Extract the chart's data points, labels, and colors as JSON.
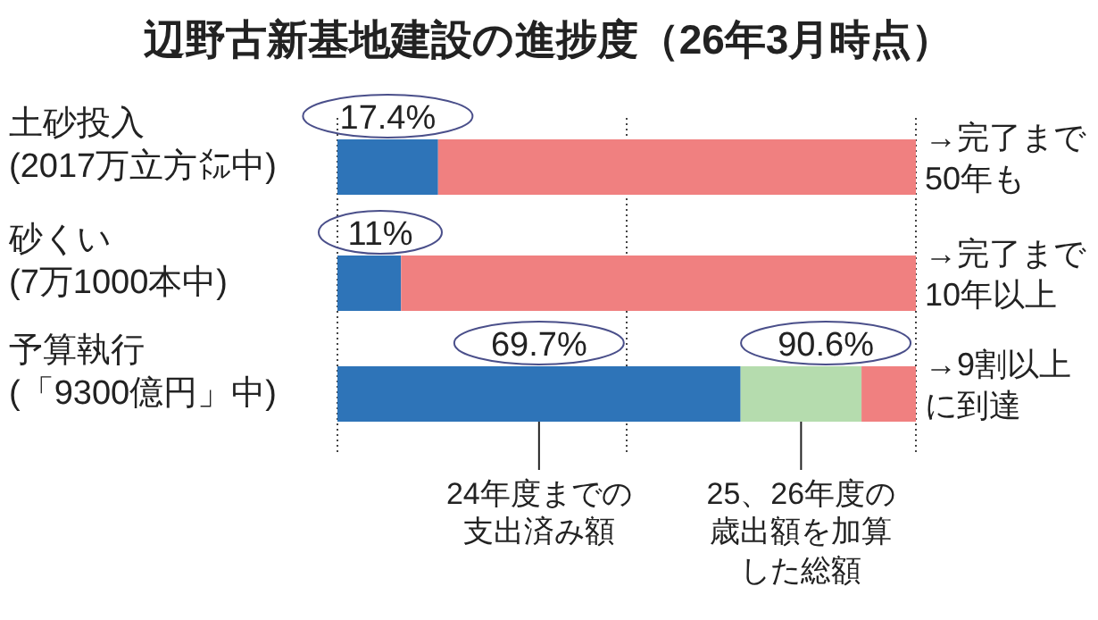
{
  "chart_data": {
    "type": "bar",
    "orientation": "horizontal",
    "stacked": true,
    "title": "辺野古新基地建設の進捗度（26年3月時点）",
    "categories": [
      "土砂投入\n(2017万立方㍍中)",
      "砂くい\n(7万1000本中)",
      "予算執行\n(「9300億円」中)"
    ],
    "series": [
      {
        "name": "24年度までの支出済み額",
        "color": "#2e74b8",
        "values": [
          17.4,
          11,
          69.7
        ],
        "value_labels": [
          "17.4%",
          "11%",
          "69.7%"
        ]
      },
      {
        "name": "25、26年度の歳出額を加算した総額",
        "color": "#b5dcae",
        "values": [
          0,
          0,
          20.9
        ]
      },
      {
        "color": "#f08080",
        "values": [
          82.6,
          89,
          9.4
        ]
      }
    ],
    "ref_lines": [
      {
        "axis": "x",
        "value": 0,
        "line_style": "dotted"
      },
      {
        "axis": "x",
        "value": 50,
        "line_style": "dotted"
      },
      {
        "axis": "x",
        "value": 100,
        "line_style": "dotted"
      }
    ],
    "annotations": [
      {
        "text": "90.6%",
        "x": 90.6,
        "y": "予算執行\n(「9300億円」中)"
      },
      "→完了まで50年も",
      "→完了まで10年以上",
      "→9割以上に到達"
    ]
  }
}
